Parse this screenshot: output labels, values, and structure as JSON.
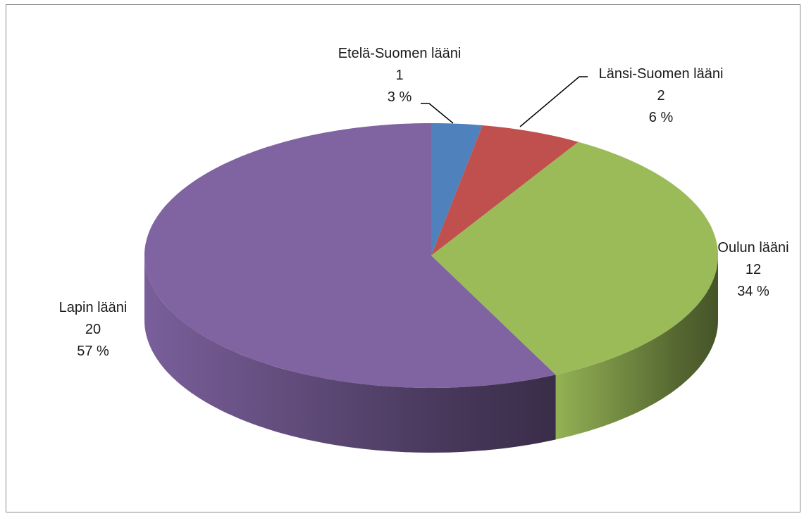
{
  "chart_data": {
    "type": "pie",
    "style": "3d",
    "title": "",
    "slices": [
      {
        "name": "Etelä-Suomen lääni",
        "value": 1,
        "percent": "3 %",
        "color": "#4F81BD"
      },
      {
        "name": "Länsi-Suomen lääni",
        "value": 2,
        "percent": "6 %",
        "color": "#C0504D"
      },
      {
        "name": "Oulun lääni",
        "value": 12,
        "percent": "34 %",
        "color": "#9BBB59"
      },
      {
        "name": "Lapin lääni",
        "value": 20,
        "percent": "57 %",
        "color": "#8064A2"
      }
    ],
    "legend": "none",
    "labels": "outside, with leader lines for small slices"
  }
}
